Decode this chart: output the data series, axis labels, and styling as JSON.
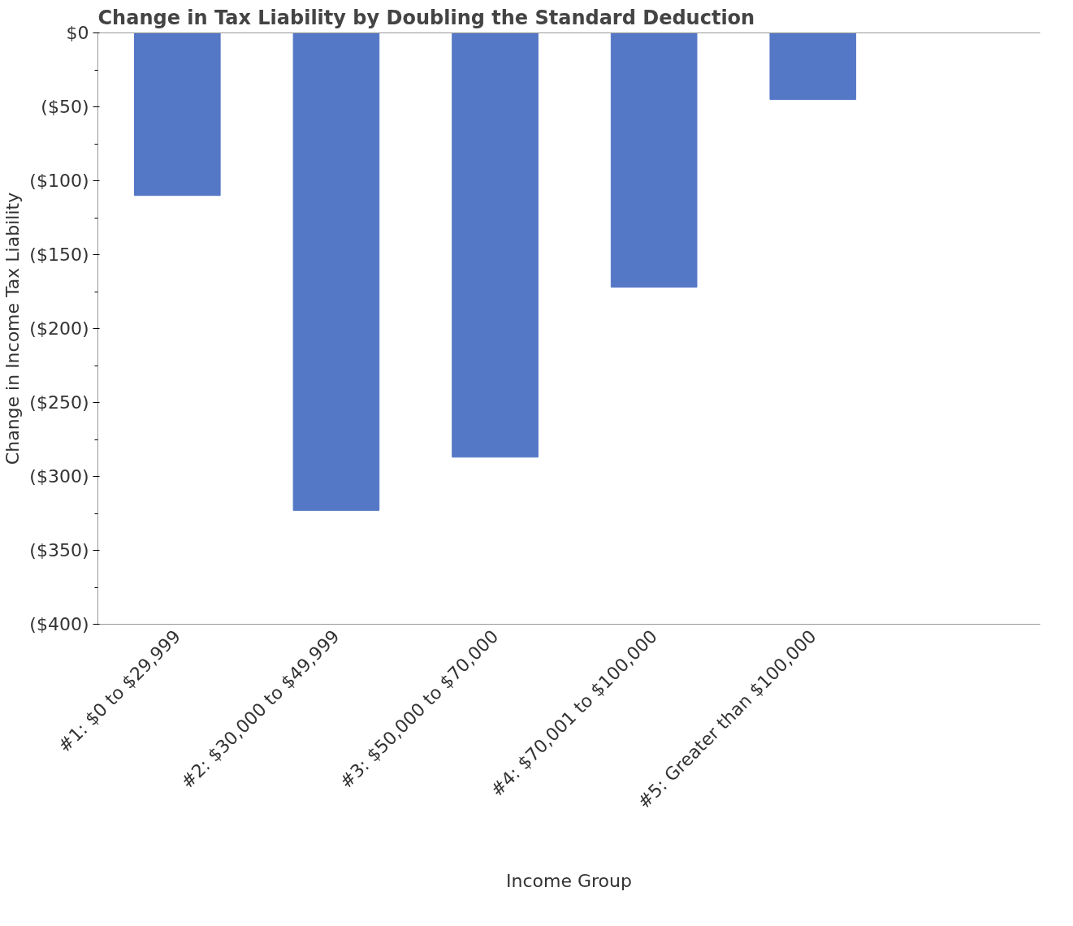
{
  "chart_data": {
    "type": "bar",
    "title": "Change in Tax Liability by Doubling the Standard Deduction",
    "xlabel": "Income Group",
    "ylabel": "Change in Income Tax Liability",
    "categories": [
      "#1: $0 to $29,999",
      "#2: $30,000 to $49,999",
      "#3: $50,000 to $70,000",
      "#4: $70,001 to $100,000",
      "#5: Greater than $100,000"
    ],
    "values": [
      -110,
      -323,
      -287,
      -172,
      -45
    ],
    "color": "#5578c6",
    "ylim": [
      -400,
      0
    ],
    "yticks": [
      {
        "value": 0,
        "label": "$0"
      },
      {
        "value": -25,
        "label": null
      },
      {
        "value": -50,
        "label": "($50)"
      },
      {
        "value": -75,
        "label": null
      },
      {
        "value": -100,
        "label": "($100)"
      },
      {
        "value": -125,
        "label": null
      },
      {
        "value": -150,
        "label": "($150)"
      },
      {
        "value": -175,
        "label": null
      },
      {
        "value": -200,
        "label": "($200)"
      },
      {
        "value": -225,
        "label": null
      },
      {
        "value": -250,
        "label": "($250)"
      },
      {
        "value": -275,
        "label": null
      },
      {
        "value": -300,
        "label": "($300)"
      },
      {
        "value": -325,
        "label": null
      },
      {
        "value": -350,
        "label": "($350)"
      },
      {
        "value": -375,
        "label": null
      },
      {
        "value": -400,
        "label": "($400)"
      }
    ],
    "grid": false
  }
}
